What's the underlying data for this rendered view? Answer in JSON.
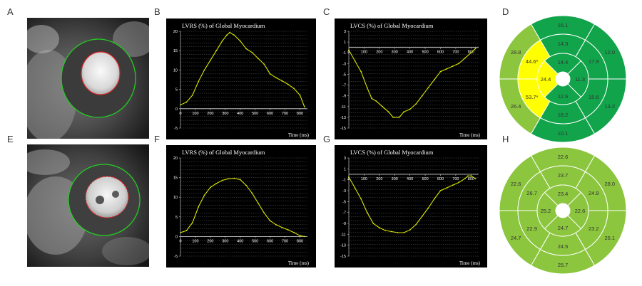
{
  "panel_labels": {
    "a": "A",
    "b": "B",
    "c": "C",
    "d": "D",
    "e": "E",
    "f": "F",
    "g": "G",
    "h": "H"
  },
  "colors": {
    "curve": "#d8e600",
    "chart_bg": "#000000",
    "text": "#ffffff",
    "bull_green_dark": "#11a44b",
    "bull_green_light": "#8cc63f",
    "bull_yellow": "#ffff00",
    "contour_green": "#22cc22",
    "contour_red": "#dd2222"
  },
  "chart_data": [
    {
      "id": "B",
      "type": "line",
      "title": "LVRS (%) of Global Myocardium",
      "xlabel": "Time (ms)",
      "ylabel": "",
      "xlim": [
        0,
        850
      ],
      "ylim": [
        -5,
        20
      ],
      "xticks": [
        0,
        100,
        200,
        300,
        400,
        500,
        600,
        700,
        800
      ],
      "yticks": [
        -5,
        0,
        5,
        10,
        15,
        20
      ],
      "x": [
        0,
        40,
        80,
        120,
        160,
        200,
        240,
        280,
        310,
        330,
        360,
        400,
        440,
        480,
        520,
        560,
        600,
        640,
        680,
        720,
        760,
        800,
        830
      ],
      "y": [
        1,
        1.7,
        3.5,
        7,
        10,
        12.5,
        15,
        17.5,
        19,
        19.7,
        19,
        17.5,
        15.5,
        14.5,
        13,
        11.5,
        9,
        8,
        7.2,
        6.3,
        5.2,
        3.5,
        0.5
      ]
    },
    {
      "id": "C",
      "type": "line",
      "title": "LVCS (%) of Global Myocardium",
      "xlabel": "Time (ms)",
      "ylabel": "",
      "xlim": [
        0,
        850
      ],
      "ylim": [
        -15,
        3
      ],
      "xticks": [
        0,
        100,
        200,
        300,
        400,
        500,
        600,
        700,
        800
      ],
      "yticks": [
        -15,
        -13,
        -11,
        -9,
        -7,
        -5,
        -3,
        -1,
        1,
        3
      ],
      "x": [
        0,
        40,
        80,
        120,
        150,
        180,
        220,
        260,
        290,
        330,
        360,
        400,
        440,
        480,
        520,
        560,
        600,
        640,
        680,
        720,
        760,
        800,
        830
      ],
      "y": [
        -0.5,
        -2.5,
        -4.5,
        -7.5,
        -9.5,
        -10,
        -11,
        -12,
        -13,
        -13,
        -12,
        -11.5,
        -10.5,
        -9,
        -7.5,
        -6,
        -4.5,
        -4,
        -3.5,
        -3,
        -2,
        -1,
        -0.2
      ]
    },
    {
      "id": "F",
      "type": "line",
      "title": "LVRS (%) of Global Myocardium",
      "xlabel": "Time (ms)",
      "ylabel": "",
      "xlim": [
        0,
        850
      ],
      "ylim": [
        -5,
        20
      ],
      "xticks": [
        0,
        100,
        200,
        300,
        400,
        500,
        600,
        700,
        800
      ],
      "yticks": [
        -5,
        0,
        5,
        10,
        15,
        20
      ],
      "x": [
        0,
        40,
        80,
        120,
        160,
        200,
        240,
        280,
        320,
        360,
        400,
        440,
        480,
        520,
        560,
        600,
        640,
        680,
        720,
        760,
        800,
        830
      ],
      "y": [
        1,
        1.5,
        3.5,
        7.5,
        10.5,
        12.5,
        13.5,
        14.3,
        14.7,
        14.8,
        14.5,
        13,
        11,
        8.5,
        6,
        4,
        3,
        2.3,
        1.7,
        1,
        0.2,
        0
      ]
    },
    {
      "id": "G",
      "type": "line",
      "title": "LVCS (%) of Global Myocardium",
      "xlabel": "Time (ms)",
      "ylabel": "",
      "xlim": [
        0,
        850
      ],
      "ylim": [
        -15,
        3
      ],
      "xticks": [
        0,
        100,
        200,
        300,
        400,
        500,
        600,
        700,
        800
      ],
      "yticks": [
        -15,
        -13,
        -11,
        -9,
        -7,
        -5,
        -3,
        -1,
        1,
        3
      ],
      "x": [
        0,
        40,
        80,
        120,
        160,
        200,
        240,
        280,
        320,
        360,
        400,
        440,
        480,
        520,
        560,
        600,
        640,
        680,
        720,
        760,
        780,
        800,
        830
      ],
      "y": [
        -0.5,
        -2.5,
        -4.5,
        -7,
        -9,
        -9.8,
        -10.3,
        -10.5,
        -10.7,
        -10.7,
        -10.2,
        -9.2,
        -7.7,
        -6.2,
        -4.5,
        -3,
        -2.5,
        -2,
        -1.5,
        -0.8,
        -0.3,
        -0.3,
        -0.8
      ]
    }
  ],
  "bullseyes": [
    {
      "id": "D",
      "rings": {
        "basal": [
          {
            "value": "16.1",
            "color": "dark",
            "star": false
          },
          {
            "value": "12.0",
            "color": "dark",
            "star": false
          },
          {
            "value": "13.2",
            "color": "dark",
            "star": false
          },
          {
            "value": "10.1",
            "color": "dark",
            "star": false
          },
          {
            "value": "26.4",
            "color": "light",
            "star": false
          },
          {
            "value": "28.8",
            "color": "light",
            "star": false
          }
        ],
        "mid": [
          {
            "value": "14.3",
            "color": "dark",
            "star": false
          },
          {
            "value": "17.9",
            "color": "dark",
            "star": false
          },
          {
            "value": "15.6",
            "color": "dark",
            "star": false
          },
          {
            "value": "18.2",
            "color": "dark",
            "star": false
          },
          {
            "value": "53.7*",
            "color": "yellow",
            "star": true
          },
          {
            "value": "44.6*",
            "color": "yellow",
            "star": true
          }
        ],
        "apical": [
          {
            "value": "14.4",
            "color": "dark",
            "star": false
          },
          {
            "value": "11.3",
            "color": "dark",
            "star": false
          },
          {
            "value": "12.6",
            "color": "dark",
            "star": false
          },
          {
            "value": "24.4",
            "color": "yellow",
            "star": false
          }
        ]
      }
    },
    {
      "id": "H",
      "rings": {
        "basal": [
          {
            "value": "22.6",
            "color": "light",
            "star": false
          },
          {
            "value": "28.0",
            "color": "light",
            "star": false
          },
          {
            "value": "26.1",
            "color": "light",
            "star": false
          },
          {
            "value": "25.7",
            "color": "light",
            "star": false
          },
          {
            "value": "24.7",
            "color": "light",
            "star": false
          },
          {
            "value": "22.6",
            "color": "light",
            "star": false
          }
        ],
        "mid": [
          {
            "value": "23.7",
            "color": "light",
            "star": false
          },
          {
            "value": "24.9",
            "color": "light",
            "star": false
          },
          {
            "value": "23.2",
            "color": "light",
            "star": false
          },
          {
            "value": "24.5",
            "color": "light",
            "star": false
          },
          {
            "value": "22.9",
            "color": "light",
            "star": false
          },
          {
            "value": "26.7",
            "color": "light",
            "star": false
          }
        ],
        "apical": [
          {
            "value": "23.4",
            "color": "light",
            "star": false
          },
          {
            "value": "22.6",
            "color": "light",
            "star": false
          },
          {
            "value": "24.7",
            "color": "light",
            "star": false
          },
          {
            "value": "25.2",
            "color": "light",
            "star": false
          }
        ]
      }
    }
  ]
}
